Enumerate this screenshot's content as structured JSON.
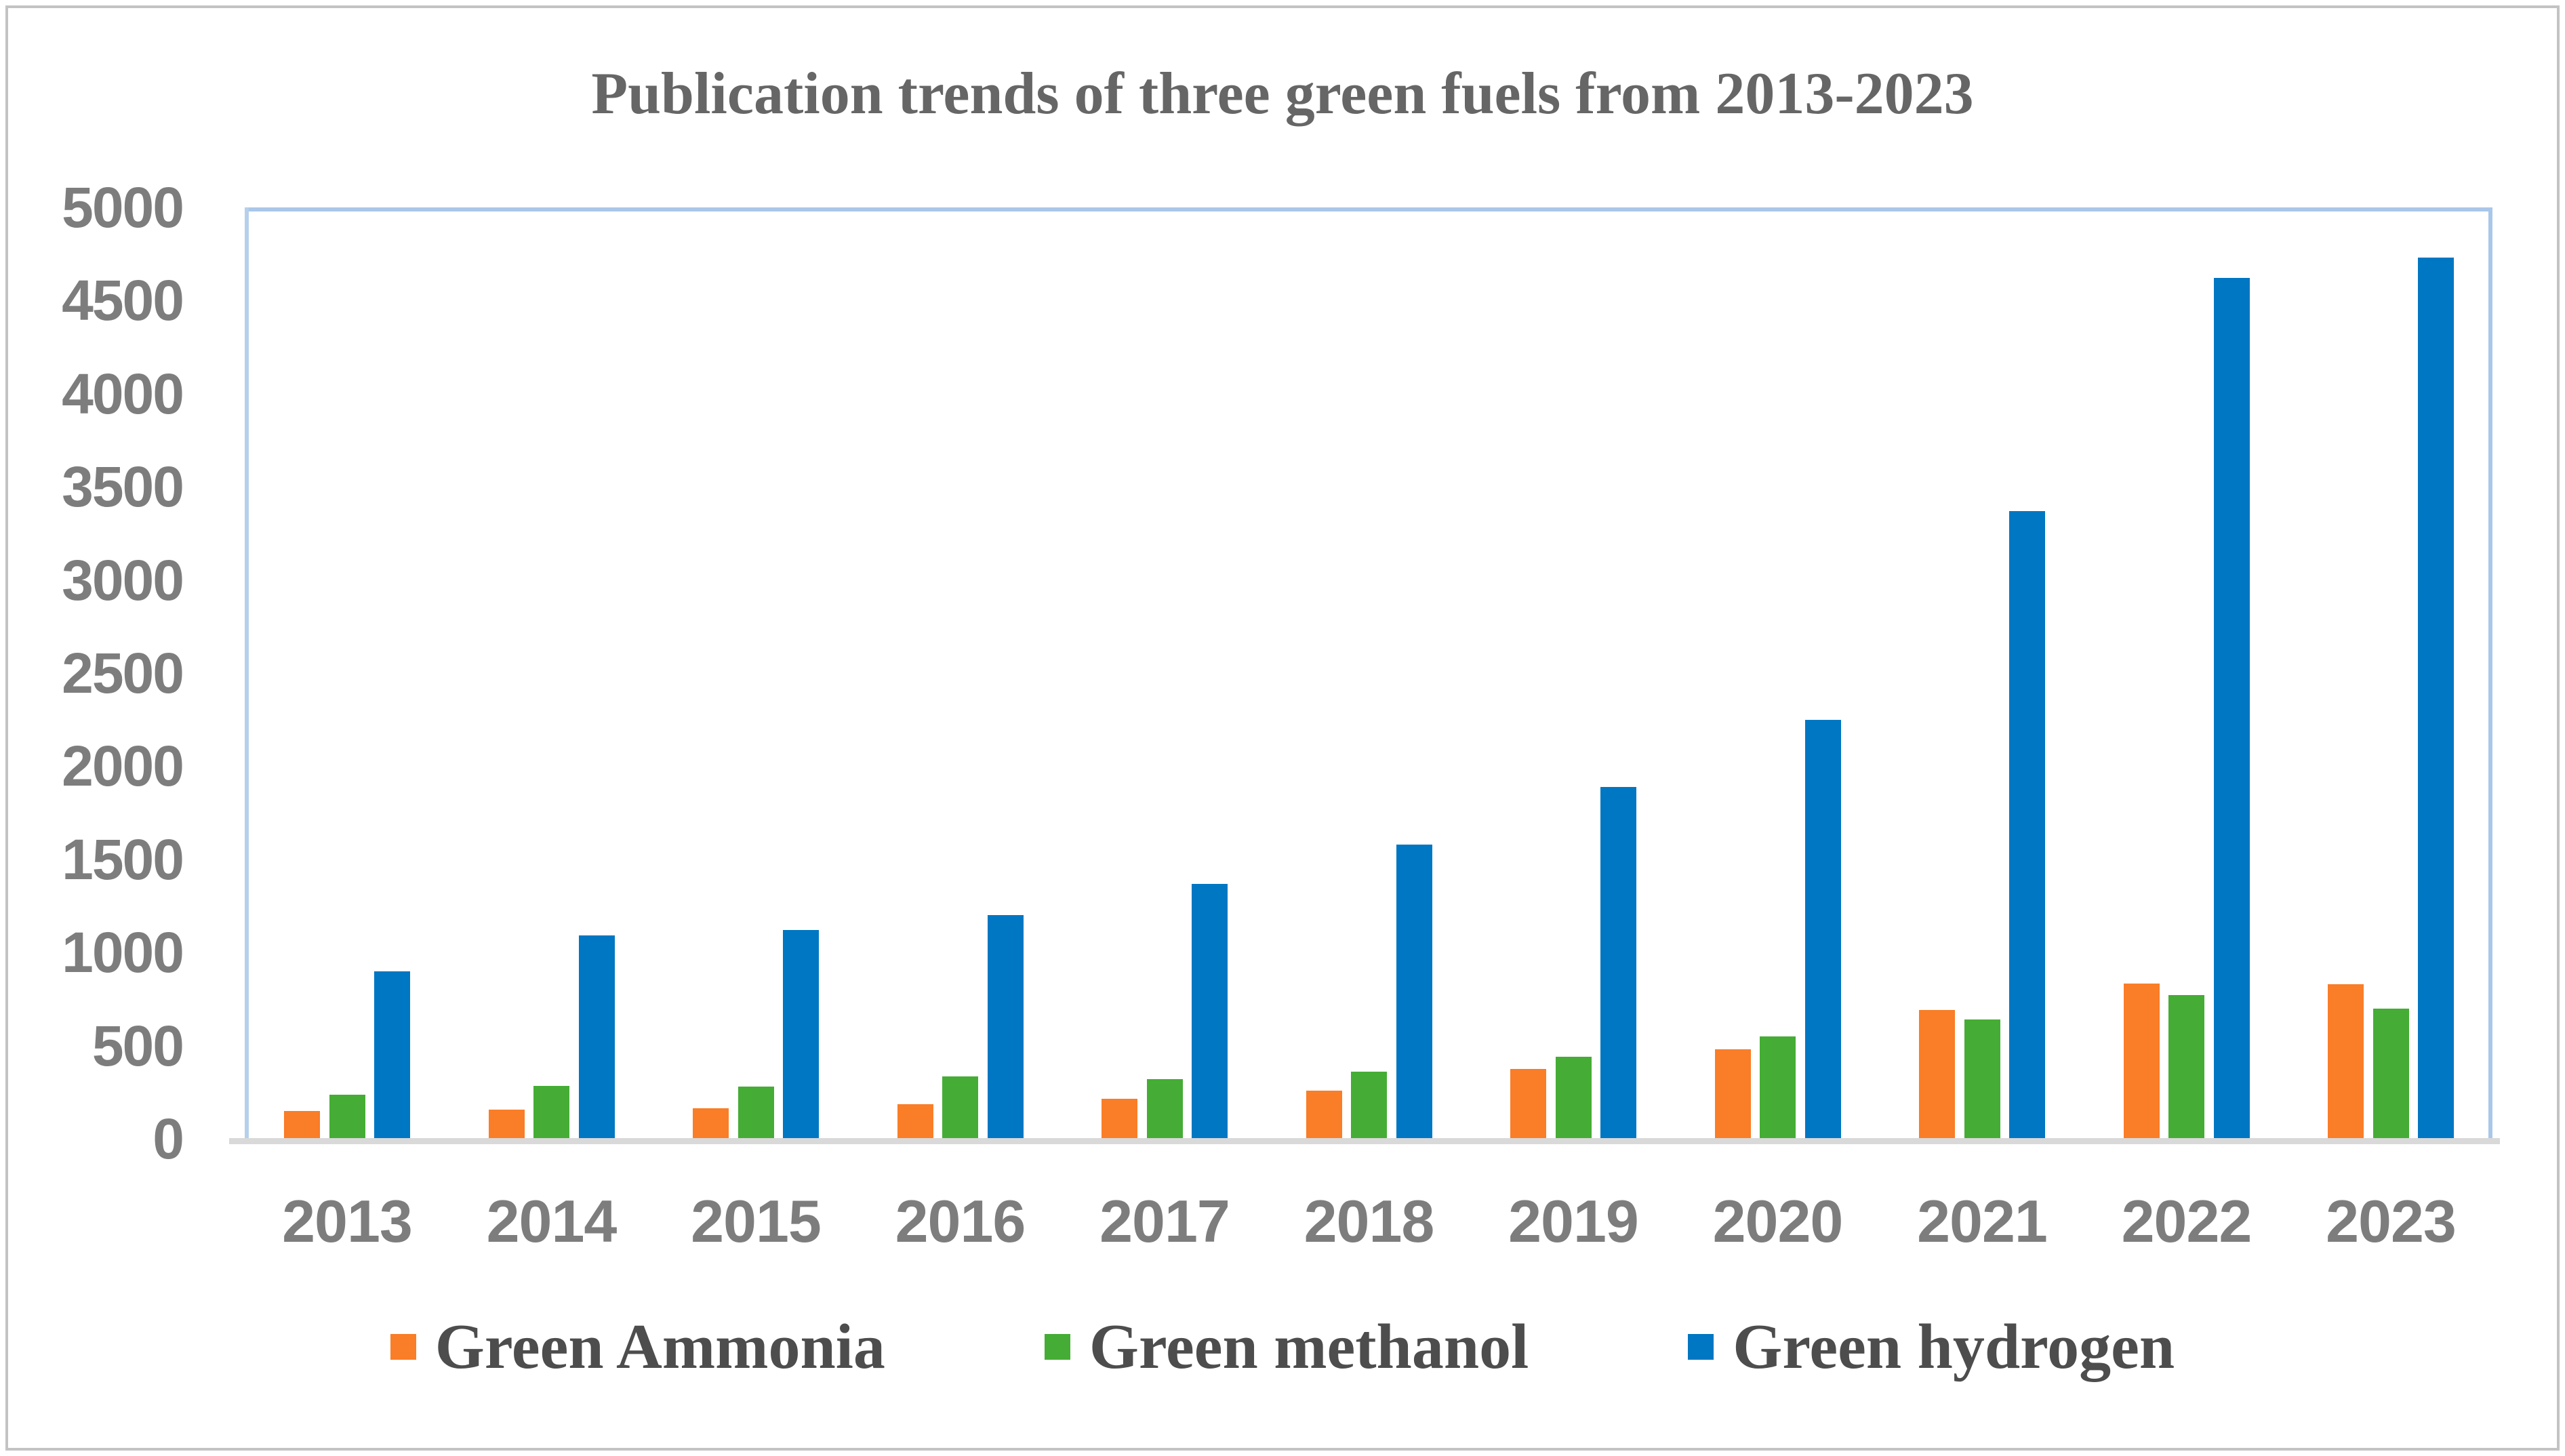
{
  "title": "Publication trends of three green fuels from 2013-2023",
  "chart_data": {
    "type": "bar",
    "title": "Publication trends of three green fuels from 2013-2023",
    "categories": [
      "2013",
      "2014",
      "2015",
      "2016",
      "2017",
      "2018",
      "2019",
      "2020",
      "2021",
      "2022",
      "2023"
    ],
    "series": [
      {
        "name": "Green Ammonia",
        "color": "#fa7d27",
        "values": [
          150,
          155,
          165,
          185,
          215,
          260,
          375,
          480,
          690,
          835,
          830
        ]
      },
      {
        "name": "Green methanol",
        "color": "#45ad35",
        "values": [
          235,
          285,
          280,
          335,
          320,
          360,
          440,
          550,
          640,
          770,
          700
        ]
      },
      {
        "name": "Green hydrogen",
        "color": "#0077c2",
        "values": [
          900,
          1090,
          1120,
          1200,
          1370,
          1580,
          1890,
          2250,
          3370,
          4620,
          4730
        ]
      }
    ],
    "xlabel": "",
    "ylabel": "",
    "ylim": [
      0,
      5000
    ],
    "ytick_step": 500,
    "ytick_labels": [
      "0",
      "500",
      "1000",
      "1500",
      "2000",
      "2500",
      "3000",
      "3500",
      "4000",
      "4500",
      "5000"
    ],
    "grid": false,
    "legend_position": "bottom",
    "plot_border_color": "#a9c7e9",
    "axis_line_color": "#d9d9d9",
    "tick_text_color": "#7d7d7d"
  }
}
